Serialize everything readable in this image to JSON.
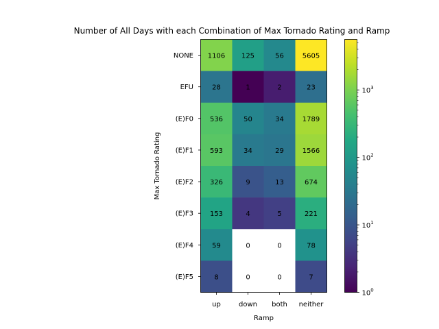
{
  "chart_data": {
    "type": "heatmap",
    "title": "Number of All Days with each Combination of Max Tornado Rating and Ramp",
    "xlabel": "Ramp",
    "ylabel": "Max Tornado Rating",
    "x_categories": [
      "up",
      "down",
      "both",
      "neither"
    ],
    "y_categories": [
      "NONE",
      "EFU",
      "(E)F0",
      "(E)F1",
      "(E)F2",
      "(E)F3",
      "(E)F4",
      "(E)F5"
    ],
    "values": [
      [
        1106,
        125,
        56,
        5605
      ],
      [
        28,
        1,
        2,
        23
      ],
      [
        536,
        50,
        34,
        1789
      ],
      [
        593,
        34,
        29,
        1566
      ],
      [
        326,
        9,
        13,
        674
      ],
      [
        153,
        4,
        5,
        221
      ],
      [
        59,
        0,
        0,
        78
      ],
      [
        8,
        0,
        0,
        7
      ]
    ],
    "colormap": "viridis",
    "color_scale": "log",
    "color_range": [
      1,
      5605
    ],
    "colorbar_ticks": [
      {
        "value": 1,
        "base": "10",
        "exp": "0"
      },
      {
        "value": 10,
        "base": "10",
        "exp": "1"
      },
      {
        "value": 100,
        "base": "10",
        "exp": "2"
      },
      {
        "value": 1000,
        "base": "10",
        "exp": "3"
      }
    ],
    "zero_cell_color": "#ffffff",
    "grid": false
  }
}
